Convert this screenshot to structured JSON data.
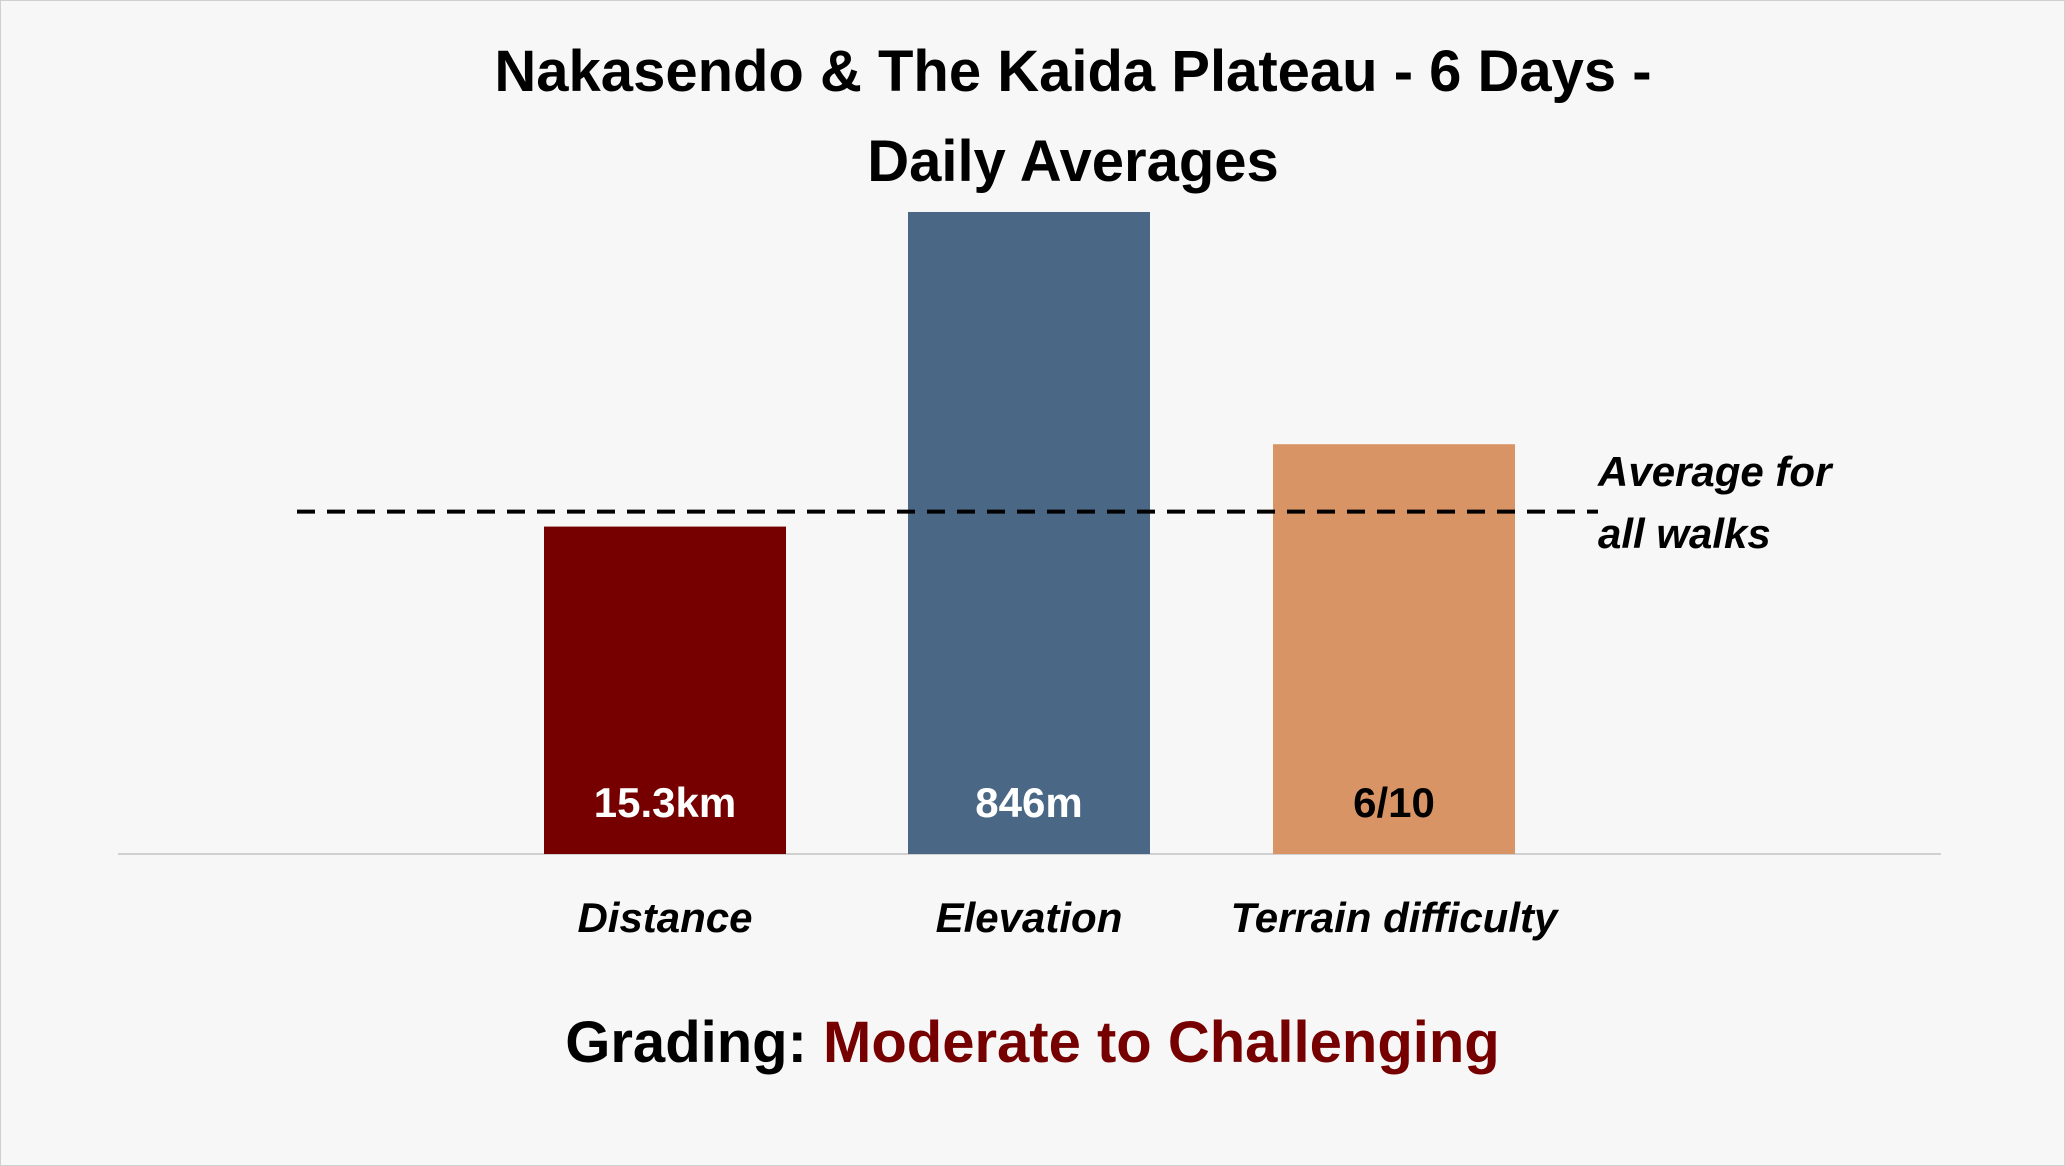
{
  "chart_data": {
    "type": "bar",
    "title": "Nakasendo & The Kaida Plateau - 6 Days - Daily Averages",
    "categories": [
      "Distance",
      "Elevation",
      "Terrain difficulty"
    ],
    "values": [
      15.3,
      846,
      6
    ],
    "value_labels": [
      "15.3km",
      "846m",
      "6/10"
    ],
    "colors": [
      "#760000",
      "#4a6885",
      "#d89464"
    ],
    "value_label_colors": [
      "#ffffff",
      "#ffffff",
      "#000000"
    ],
    "ylims": [
      [
        0,
        30
      ],
      [
        0,
        846
      ],
      [
        0,
        9.4
      ]
    ],
    "reference": {
      "label": "Average for all walks",
      "values": [
        16,
        450,
        5
      ]
    },
    "grading_label": "Grading:",
    "grading_value": "Moderate to Challenging",
    "grading_color": "#760000"
  }
}
